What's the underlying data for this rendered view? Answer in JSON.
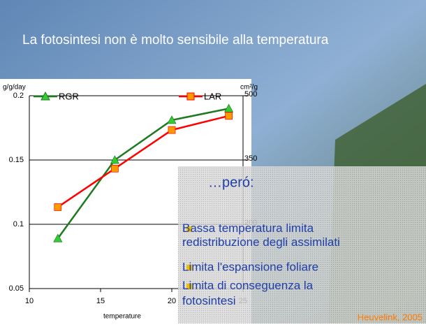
{
  "slide_title": "La fotosintesi non è molto sensibile alla temperatura",
  "subheading": "…peró:",
  "bullets": [
    "Bassa temperatura limita redistribuzione degli assimilati",
    "Limita l'espansione foliare",
    "Limita di conseguenza la fotosintesi"
  ],
  "credit": "Heuvelink, 2005",
  "chart_data": {
    "type": "line",
    "x_label": "temperature",
    "y_label": "g/g/day",
    "y2_label": "cm²/g",
    "x": [
      12,
      16,
      20,
      24
    ],
    "xlim": [
      10,
      25
    ],
    "xticks": [
      10,
      15,
      20,
      25
    ],
    "ylim": [
      0.05,
      0.2
    ],
    "yticks": [
      0.05,
      0.1,
      0.15,
      0.2
    ],
    "y2lim": [
      50,
      500
    ],
    "y2ticks": [
      50,
      200,
      350,
      500
    ],
    "grid": true,
    "series": [
      {
        "name": "RGR",
        "color": "#1f7a1f",
        "marker_color": "#33cc33",
        "marker": "triangle",
        "values": [
          0.089,
          0.15,
          0.181,
          0.19
        ]
      },
      {
        "name": "LAR",
        "color": "#ff0000",
        "marker_color": "#ff9900",
        "marker": "square",
        "axis": "y2",
        "values": [
          240,
          330,
          420,
          453
        ]
      }
    ]
  }
}
